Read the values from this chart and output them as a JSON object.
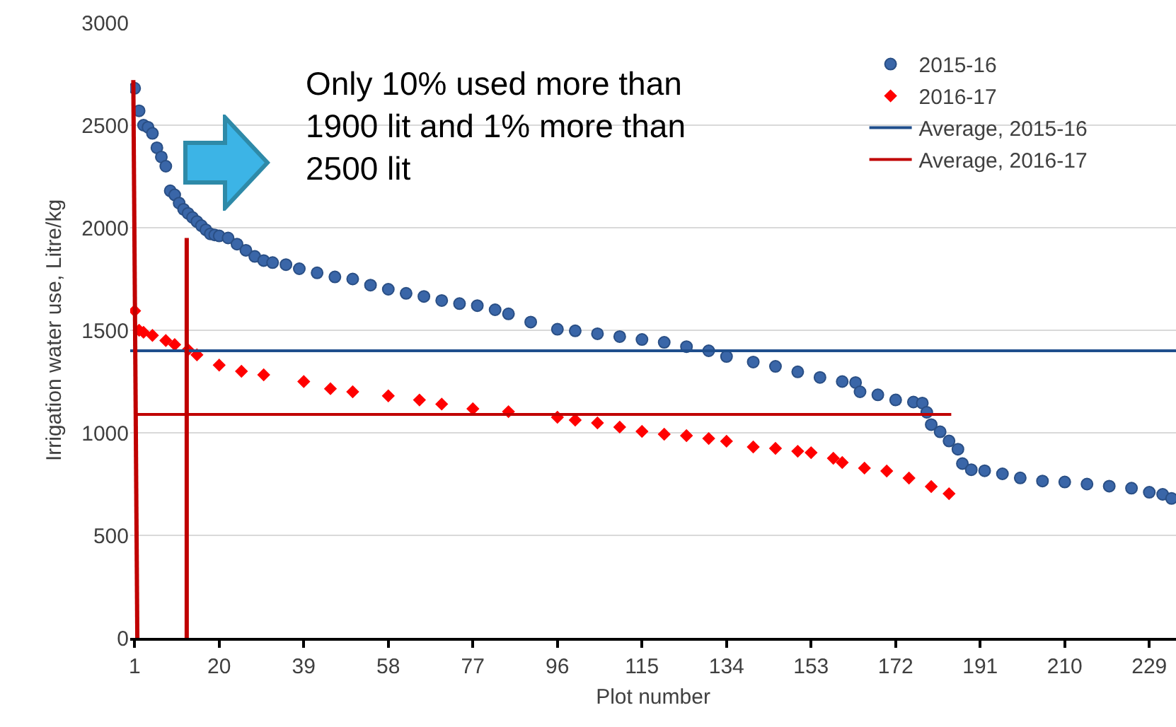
{
  "chart_data": {
    "type": "scatter",
    "xlabel": "Plot number",
    "ylabel": "Irrigation water use, Litre/kg",
    "xlim": [
      0,
      235
    ],
    "xticks": [
      1,
      20,
      39,
      58,
      77,
      96,
      115,
      134,
      153,
      172,
      191,
      210,
      229
    ],
    "ylim": [
      0,
      3000
    ],
    "yticks": [
      0,
      500,
      1000,
      1500,
      2000,
      2500,
      3000
    ],
    "grid": "y",
    "legend": "top right",
    "annotations": [
      "Only 10% used more than\n1900 lit and 1% more than\n2500 lit"
    ],
    "series": [
      {
        "name": "2015-16",
        "marker": "circle",
        "color": "#3a66a8",
        "x": [
          1,
          2,
          3,
          4,
          5,
          6,
          7,
          8,
          9,
          10,
          11,
          12,
          13,
          14,
          15,
          16,
          17,
          18,
          19,
          20,
          22,
          24,
          26,
          28,
          30,
          32,
          35,
          38,
          42,
          46,
          50,
          54,
          58,
          62,
          66,
          70,
          74,
          78,
          82,
          85,
          90,
          96,
          100,
          105,
          110,
          115,
          120,
          125,
          130,
          134,
          140,
          145,
          150,
          155,
          160,
          163,
          164,
          168,
          172,
          176,
          178,
          179,
          180,
          182,
          184,
          186,
          187,
          189,
          192,
          196,
          200,
          205,
          210,
          215,
          220,
          225,
          229,
          232,
          234
        ],
        "values": [
          2680,
          2570,
          2500,
          2490,
          2460,
          2390,
          2345,
          2300,
          2180,
          2160,
          2120,
          2090,
          2070,
          2050,
          2030,
          2010,
          1990,
          1970,
          1965,
          1960,
          1950,
          1920,
          1890,
          1860,
          1840,
          1830,
          1820,
          1800,
          1780,
          1760,
          1750,
          1720,
          1700,
          1680,
          1665,
          1645,
          1630,
          1620,
          1600,
          1580,
          1540,
          1505,
          1497,
          1483,
          1469,
          1455,
          1441,
          1420,
          1400,
          1372,
          1345,
          1324,
          1297,
          1270,
          1250,
          1245,
          1200,
          1185,
          1160,
          1150,
          1145,
          1100,
          1040,
          1005,
          960,
          920,
          850,
          820,
          815,
          800,
          780,
          765,
          760,
          750,
          740,
          730,
          710,
          700,
          680
        ]
      },
      {
        "name": "2016-17",
        "marker": "diamond",
        "color": "#ff0000",
        "x": [
          1,
          2,
          3,
          5,
          8,
          10,
          13,
          15,
          20,
          25,
          30,
          39,
          45,
          50,
          58,
          65,
          70,
          77,
          85,
          96,
          100,
          105,
          110,
          115,
          120,
          125,
          130,
          134,
          140,
          145,
          150,
          153,
          158,
          160,
          165,
          170,
          175,
          180,
          184
        ],
        "values": [
          1595,
          1500,
          1490,
          1475,
          1450,
          1430,
          1405,
          1380,
          1330,
          1300,
          1283,
          1250,
          1215,
          1200,
          1180,
          1160,
          1140,
          1117,
          1103,
          1076,
          1062,
          1048,
          1028,
          1007,
          993,
          986,
          972,
          959,
          931,
          924,
          910,
          903,
          876,
          855,
          828,
          814,
          779,
          738,
          703
        ]
      },
      {
        "name": "Average, 2015-16",
        "type": "line",
        "color": "#1f4e8c",
        "x": [
          0,
          235
        ],
        "values": [
          1400,
          1400
        ]
      },
      {
        "name": "Average, 2016-17",
        "type": "line",
        "color": "#c00000",
        "x": [
          1,
          184.5
        ],
        "values": [
          1090,
          1090
        ]
      },
      {
        "type": "line",
        "color": "#c00000",
        "x": [
          0.7,
          1.6
        ],
        "values": [
          2720,
          0
        ]
      },
      {
        "type": "line",
        "color": "#c00000",
        "x": [
          12.7,
          12.7
        ],
        "values": [
          1950,
          0
        ]
      }
    ]
  }
}
